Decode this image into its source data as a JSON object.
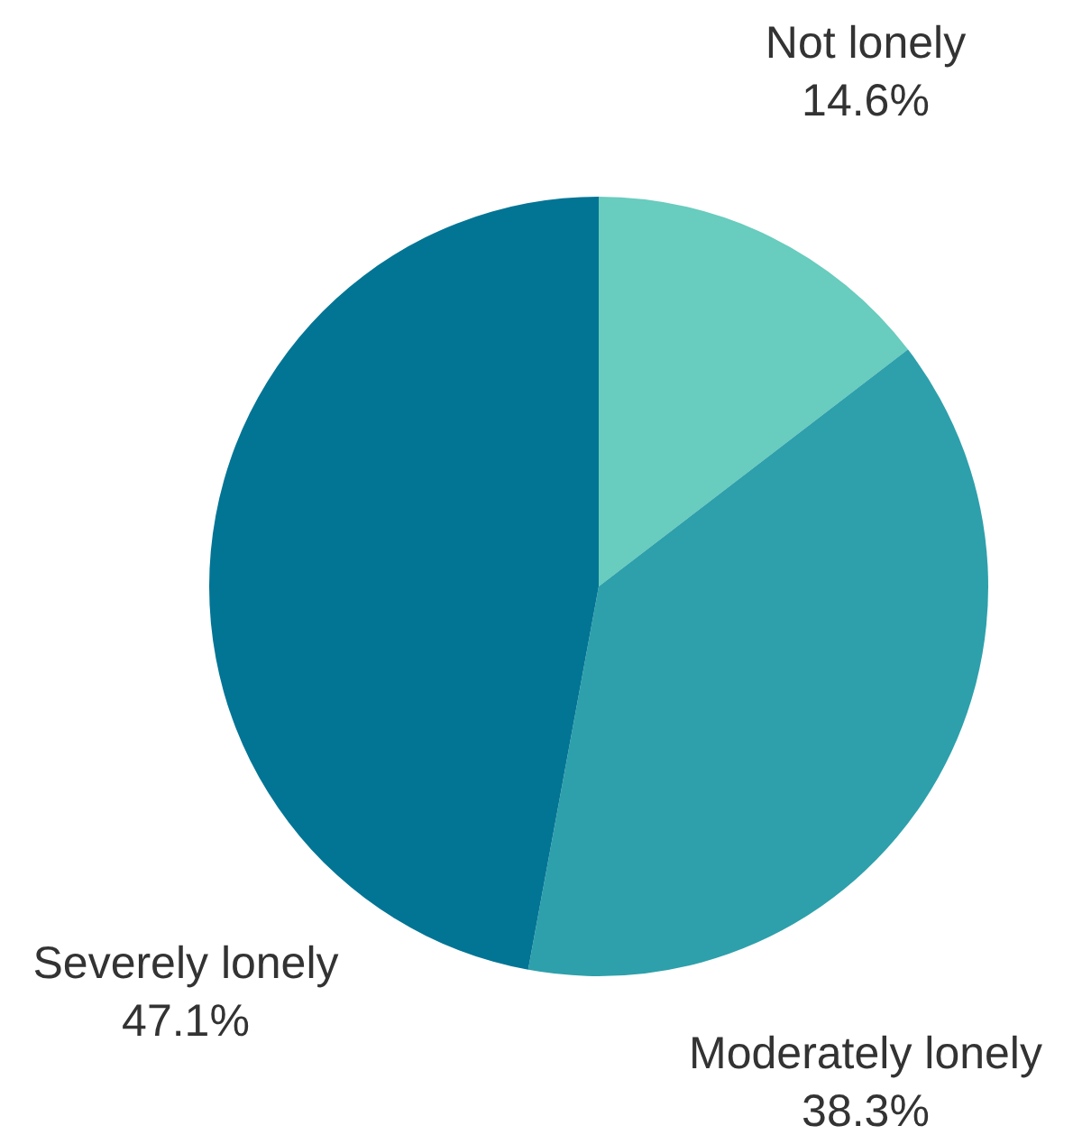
{
  "chart_data": {
    "type": "pie",
    "categories": [
      "Not lonely",
      "Moderately lonely",
      "Severely lonely"
    ],
    "values": [
      14.6,
      38.3,
      47.1
    ],
    "colors": [
      "#68ccbe",
      "#2da0ab",
      "#027595"
    ],
    "value_labels": [
      "14.6%",
      "38.3%",
      "47.1%"
    ]
  }
}
